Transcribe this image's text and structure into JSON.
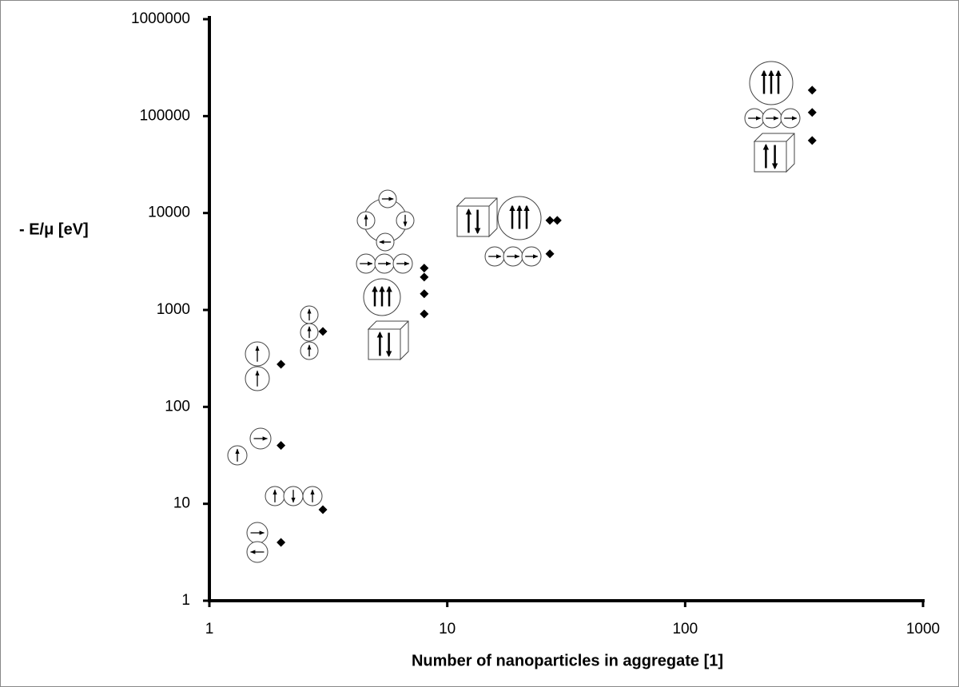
{
  "chart_data": {
    "type": "scatter",
    "x_label": "Number of nanoparticles in aggregate [1]",
    "y_label": "- E/μ [eV]",
    "x": [
      2,
      2,
      2,
      3,
      3,
      8,
      8,
      8,
      8,
      27,
      27,
      29,
      342,
      342,
      342
    ],
    "values": [
      4,
      40,
      275,
      8.7,
      600,
      2700,
      2180,
      1470,
      910,
      3790,
      8400,
      8400,
      185000,
      109000,
      56000
    ],
    "color": "#000000",
    "log_x": true,
    "log_y": true,
    "xlim": [
      1,
      1000
    ],
    "xticks": [
      1,
      10,
      100,
      1000
    ],
    "ylim": [
      1,
      1000000
    ],
    "yticks": [
      1,
      10,
      100,
      1000,
      10000,
      100000,
      1000000
    ]
  }
}
